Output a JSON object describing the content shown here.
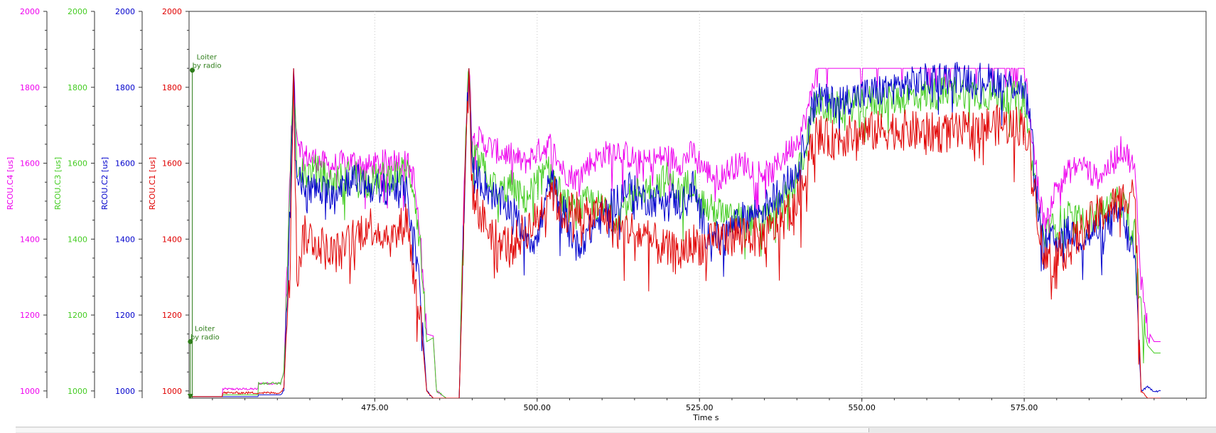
{
  "colors": {
    "c1": "#e00000",
    "c2": "#0000cc",
    "c3": "#44cc22",
    "c4": "#ee00ee",
    "event": "#2e7d1a",
    "grid": "#c8c8c8"
  },
  "chart_data": {
    "type": "line",
    "xlabel": "Time s",
    "xlim": [
      446.4,
      603.0
    ],
    "xticks": [
      "475.00",
      "500.00",
      "525.00",
      "550.00",
      "575.00"
    ],
    "grid": "vertical dotted",
    "axes": [
      {
        "key": "c4",
        "label": "RCOU.C4 [us]",
        "ylim": [
          981,
          2000
        ],
        "ticks": [
          "1000",
          "1200",
          "1400",
          "1600",
          "1800",
          "2000"
        ]
      },
      {
        "key": "c3",
        "label": "RCOU.C3 [us]",
        "ylim": [
          981,
          2000
        ],
        "ticks": [
          "1000",
          "1200",
          "1400",
          "1600",
          "1800",
          "2000"
        ]
      },
      {
        "key": "c2",
        "label": "RCOU.C2 [us]",
        "ylim": [
          981,
          2000
        ],
        "ticks": [
          "1000",
          "1200",
          "1400",
          "1600",
          "1800",
          "2000"
        ]
      },
      {
        "key": "c1",
        "label": "RCOU.C1 [us]",
        "ylim": [
          981,
          2000
        ],
        "ticks": [
          "1000",
          "1200",
          "1400",
          "1600",
          "1800",
          "2000"
        ]
      }
    ],
    "events": [
      {
        "label": "Loiter\nby radio",
        "x": 446.9,
        "y": 1845
      },
      {
        "label": "Loiter\nby radio",
        "x": 446.6,
        "y": 1130
      }
    ],
    "series": [
      {
        "key": "c4",
        "x": [
          446.4,
          447.0,
          451.5,
          451.6,
          457.0,
          457.1,
          460.5,
          461.0,
          462.0,
          462.5,
          463.0,
          464.0,
          466.0,
          468.0,
          470.0,
          472.0,
          474.0,
          476.0,
          478.0,
          480.0,
          481.0,
          482.0,
          483.0,
          484.0,
          484.5,
          486.0,
          487.0,
          488.0,
          489.0,
          489.5,
          490.0,
          492.0,
          494.0,
          496.0,
          498.0,
          500.0,
          502.0,
          504.0,
          506.0,
          508.0,
          510.0,
          512.0,
          514.0,
          516.0,
          518.0,
          520.0,
          522.0,
          524.0,
          526.0,
          528.0,
          530.0,
          532.0,
          534.0,
          536.0,
          538.0,
          540.0,
          541.0,
          542.0,
          543.0,
          545.0,
          550.0,
          555.0,
          560.0,
          565.0,
          570.0,
          575.0,
          576.0,
          577.0,
          578.0,
          580.0,
          582.0,
          584.0,
          586.0,
          588.0,
          590.0,
          591.0,
          592.0,
          593.0,
          594.0,
          595.0,
          596.0
        ],
        "y": [
          985,
          985,
          985,
          1005,
          1005,
          1020,
          1020,
          1050,
          1600,
          1850,
          1680,
          1620,
          1610,
          1590,
          1600,
          1605,
          1590,
          1600,
          1610,
          1600,
          1560,
          1400,
          1150,
          1145,
          1000,
          981,
          981,
          981,
          1700,
          1850,
          1680,
          1650,
          1630,
          1620,
          1600,
          1630,
          1650,
          1580,
          1560,
          1600,
          1620,
          1640,
          1620,
          1600,
          1610,
          1620,
          1600,
          1630,
          1580,
          1560,
          1590,
          1600,
          1580,
          1570,
          1620,
          1660,
          1700,
          1760,
          1850,
          1850,
          1850,
          1850,
          1850,
          1850,
          1850,
          1850,
          1700,
          1560,
          1440,
          1540,
          1580,
          1600,
          1560,
          1590,
          1640,
          1620,
          1580,
          1300,
          1160,
          1130,
          1130
        ]
      },
      {
        "key": "c3",
        "x": [
          446.4,
          447.0,
          451.5,
          451.6,
          457.0,
          457.1,
          460.5,
          461.0,
          462.0,
          462.5,
          463.0,
          464.0,
          466.0,
          468.0,
          470.0,
          472.0,
          474.0,
          476.0,
          478.0,
          480.0,
          481.0,
          482.0,
          483.0,
          484.0,
          484.5,
          486.0,
          487.0,
          488.0,
          489.0,
          489.5,
          490.0,
          492.0,
          494.0,
          496.0,
          498.0,
          500.0,
          502.0,
          504.0,
          506.0,
          508.0,
          510.0,
          512.0,
          514.0,
          516.0,
          518.0,
          520.0,
          522.0,
          524.0,
          526.0,
          528.0,
          530.0,
          532.0,
          534.0,
          536.0,
          538.0,
          540.0,
          541.0,
          542.0,
          543.0,
          545.0,
          550.0,
          555.0,
          560.0,
          565.0,
          570.0,
          575.0,
          576.0,
          577.0,
          578.0,
          580.0,
          582.0,
          584.0,
          586.0,
          588.0,
          590.0,
          591.0,
          592.0,
          593.0,
          594.0,
          595.0,
          596.0
        ],
        "y": [
          985,
          985,
          985,
          990,
          990,
          1020,
          1020,
          1050,
          1550,
          1850,
          1600,
          1570,
          1580,
          1550,
          1560,
          1570,
          1550,
          1560,
          1570,
          1580,
          1540,
          1380,
          1130,
          1140,
          1000,
          981,
          981,
          981,
          1680,
          1850,
          1620,
          1580,
          1520,
          1540,
          1500,
          1550,
          1580,
          1500,
          1470,
          1500,
          1480,
          1460,
          1500,
          1530,
          1540,
          1560,
          1520,
          1560,
          1480,
          1470,
          1450,
          1460,
          1440,
          1460,
          1500,
          1560,
          1620,
          1700,
          1760,
          1740,
          1760,
          1770,
          1780,
          1790,
          1780,
          1770,
          1640,
          1480,
          1400,
          1440,
          1460,
          1440,
          1460,
          1480,
          1500,
          1460,
          1420,
          1200,
          1120,
          1100,
          1100
        ]
      },
      {
        "key": "c2",
        "x": [
          446.4,
          447.0,
          451.5,
          451.6,
          457.0,
          457.1,
          460.5,
          461.0,
          462.0,
          462.5,
          463.0,
          464.0,
          466.0,
          468.0,
          470.0,
          472.0,
          474.0,
          476.0,
          478.0,
          480.0,
          481.0,
          482.0,
          483.0,
          484.0,
          484.5,
          486.0,
          487.0,
          488.0,
          489.0,
          489.5,
          490.0,
          492.0,
          494.0,
          496.0,
          498.0,
          500.0,
          502.0,
          504.0,
          506.0,
          508.0,
          510.0,
          512.0,
          514.0,
          516.0,
          518.0,
          520.0,
          522.0,
          524.0,
          526.0,
          528.0,
          530.0,
          532.0,
          534.0,
          536.0,
          538.0,
          540.0,
          541.0,
          542.0,
          543.0,
          545.0,
          550.0,
          555.0,
          560.0,
          565.0,
          570.0,
          575.0,
          576.0,
          577.0,
          578.0,
          580.0,
          582.0,
          584.0,
          586.0,
          588.0,
          590.0,
          591.0,
          592.0,
          593.0,
          594.0,
          595.0,
          596.0
        ],
        "y": [
          985,
          985,
          985,
          985,
          985,
          990,
          990,
          1000,
          1500,
          1850,
          1560,
          1540,
          1530,
          1520,
          1550,
          1560,
          1540,
          1530,
          1540,
          1520,
          1400,
          1260,
          1000,
          981,
          981,
          981,
          981,
          981,
          1650,
          1850,
          1580,
          1540,
          1500,
          1480,
          1420,
          1390,
          1560,
          1480,
          1380,
          1420,
          1460,
          1500,
          1540,
          1510,
          1500,
          1520,
          1490,
          1540,
          1420,
          1400,
          1430,
          1460,
          1470,
          1500,
          1540,
          1580,
          1640,
          1720,
          1780,
          1760,
          1780,
          1800,
          1820,
          1830,
          1820,
          1800,
          1700,
          1500,
          1380,
          1400,
          1420,
          1400,
          1420,
          1440,
          1470,
          1400,
          1360,
          1000,
          1010,
          1000,
          1000
        ]
      },
      {
        "key": "c1",
        "x": [
          446.4,
          447.0,
          451.5,
          451.6,
          457.0,
          457.1,
          460.5,
          461.0,
          462.0,
          462.5,
          463.0,
          464.0,
          466.0,
          468.0,
          470.0,
          472.0,
          474.0,
          476.0,
          478.0,
          480.0,
          481.0,
          482.0,
          483.0,
          484.0,
          484.5,
          486.0,
          487.0,
          488.0,
          489.0,
          489.5,
          490.0,
          492.0,
          494.0,
          496.0,
          498.0,
          500.0,
          502.0,
          504.0,
          506.0,
          508.0,
          510.0,
          512.0,
          514.0,
          516.0,
          518.0,
          520.0,
          522.0,
          524.0,
          526.0,
          528.0,
          530.0,
          532.0,
          534.0,
          536.0,
          538.0,
          540.0,
          541.0,
          542.0,
          543.0,
          545.0,
          550.0,
          555.0,
          560.0,
          565.0,
          570.0,
          575.0,
          576.0,
          577.0,
          578.0,
          580.0,
          582.0,
          584.0,
          586.0,
          588.0,
          590.0,
          591.0,
          592.0,
          593.0,
          594.0,
          595.0,
          596.0
        ],
        "y": [
          985,
          985,
          985,
          995,
          995,
          995,
          995,
          1010,
          1380,
          1850,
          1300,
          1410,
          1400,
          1360,
          1370,
          1410,
          1440,
          1420,
          1400,
          1460,
          1300,
          1200,
          1000,
          981,
          981,
          981,
          981,
          981,
          1600,
          1850,
          1520,
          1440,
          1400,
          1380,
          1420,
          1450,
          1540,
          1460,
          1480,
          1450,
          1480,
          1420,
          1430,
          1410,
          1390,
          1370,
          1360,
          1390,
          1380,
          1400,
          1410,
          1420,
          1400,
          1420,
          1460,
          1500,
          1560,
          1620,
          1680,
          1660,
          1680,
          1690,
          1680,
          1680,
          1700,
          1700,
          1620,
          1480,
          1340,
          1360,
          1380,
          1420,
          1460,
          1480,
          1500,
          1520,
          1540,
          1000,
          981,
          981,
          981
        ]
      }
    ]
  }
}
